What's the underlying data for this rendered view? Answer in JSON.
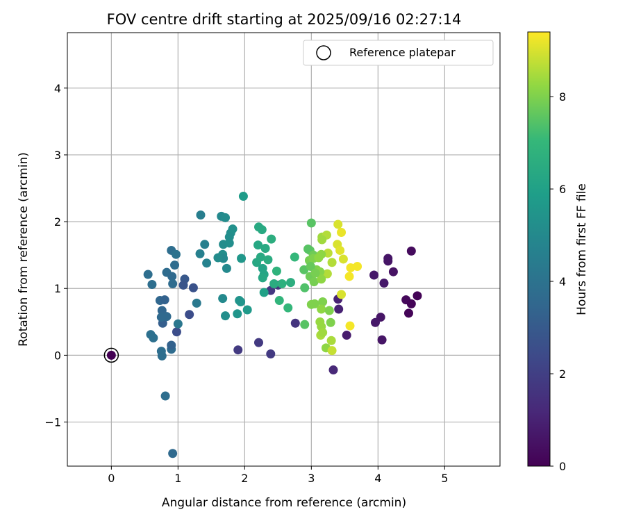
{
  "chart_data": {
    "type": "scatter",
    "title": "FOV centre drift starting at 2025/09/16 02:27:14",
    "xlabel": "Angular distance from reference (arcmin)",
    "ylabel": "Rotation from reference (arcmin)",
    "xlim": [
      -0.66,
      5.83
    ],
    "ylim": [
      -1.66,
      4.83
    ],
    "xticks": [
      0,
      1,
      2,
      3,
      4,
      5
    ],
    "xtick_labels": [
      "0",
      "1",
      "2",
      "3",
      "4",
      "5"
    ],
    "yticks": [
      -1,
      0,
      1,
      2,
      3,
      4
    ],
    "ytick_labels": [
      "−1",
      "0",
      "1",
      "2",
      "3",
      "4"
    ],
    "grid": true,
    "legend": {
      "placement": "top-right",
      "entries": [
        "Reference platepar"
      ]
    },
    "reference_point": [
      0,
      0
    ],
    "colorbar": {
      "label": "Hours from first FF file",
      "range": [
        0,
        9.4
      ],
      "ticks": [
        0,
        2,
        4,
        6,
        8
      ],
      "tick_labels": [
        "0",
        "2",
        "4",
        "6",
        "8"
      ],
      "colormap": "viridis"
    },
    "points_columns": [
      "x",
      "y",
      "hours"
    ],
    "points": [
      [
        0,
        0,
        0
      ],
      [
        4.5,
        1.56,
        0.3
      ],
      [
        4.15,
        1.45,
        0.6
      ],
      [
        4.15,
        1.41,
        0.6
      ],
      [
        4.23,
        1.25,
        0.5
      ],
      [
        3.94,
        1.2,
        0.7
      ],
      [
        4.09,
        1.08,
        0.7
      ],
      [
        4.59,
        0.89,
        0.1
      ],
      [
        4.42,
        0.83,
        0.2
      ],
      [
        4.5,
        0.77,
        0.1
      ],
      [
        4.46,
        0.63,
        0.1
      ],
      [
        4.04,
        0.57,
        0.6
      ],
      [
        3.96,
        0.49,
        0.7
      ],
      [
        4.06,
        0.23,
        0.6
      ],
      [
        3.53,
        0.3,
        0.8
      ],
      [
        3.4,
        0.84,
        1.0
      ],
      [
        3.41,
        0.69,
        1.0
      ],
      [
        3.33,
        -0.22,
        1.2
      ],
      [
        2.39,
        0.02,
        1.8
      ],
      [
        1.17,
        0.61,
        2.5
      ],
      [
        1.9,
        0.08,
        1.8
      ],
      [
        2.21,
        0.19,
        1.8
      ],
      [
        2.39,
        0.97,
        1.7
      ],
      [
        2.5,
        1.05,
        1.6
      ],
      [
        2.76,
        0.48,
        1.6
      ],
      [
        0.81,
        -0.61,
        3.8
      ],
      [
        0.92,
        -1.47,
        3.6
      ],
      [
        0.9,
        0.09,
        3.7
      ],
      [
        0.9,
        0.15,
        3.3
      ],
      [
        0.76,
        -0.01,
        3.8
      ],
      [
        0.75,
        0.06,
        3.8
      ],
      [
        0.59,
        0.31,
        3.9
      ],
      [
        0.63,
        0.26,
        3.9
      ],
      [
        0.77,
        0.48,
        3.2
      ],
      [
        0.98,
        0.35,
        2.5
      ],
      [
        1.0,
        0.47,
        4.2
      ],
      [
        0.76,
        0.67,
        3.5
      ],
      [
        0.83,
        0.58,
        3.6
      ],
      [
        0.75,
        0.57,
        3.6
      ],
      [
        0.73,
        0.82,
        3.5
      ],
      [
        0.8,
        0.83,
        3.3
      ],
      [
        0.55,
        1.21,
        3.8
      ],
      [
        0.61,
        1.06,
        3.8
      ],
      [
        0.83,
        1.24,
        3.7
      ],
      [
        0.91,
        1.18,
        3.6
      ],
      [
        0.92,
        1.07,
        3.7
      ],
      [
        0.9,
        1.57,
        3.8
      ],
      [
        0.97,
        1.51,
        4.0
      ],
      [
        0.95,
        1.35,
        3.7
      ],
      [
        1.1,
        1.14,
        2.9
      ],
      [
        1.08,
        1.05,
        2.8
      ],
      [
        1.23,
        1.01,
        2.7
      ],
      [
        1.28,
        0.78,
        4.3
      ],
      [
        1.34,
        2.1,
        4.5
      ],
      [
        1.33,
        1.52,
        4.6
      ],
      [
        1.4,
        1.66,
        4.6
      ],
      [
        1.43,
        1.38,
        4.7
      ],
      [
        1.65,
        2.08,
        5.0
      ],
      [
        1.71,
        2.06,
        5.1
      ],
      [
        1.79,
        1.83,
        5.2
      ],
      [
        1.82,
        1.89,
        5.3
      ],
      [
        1.77,
        1.77,
        5.2
      ],
      [
        1.67,
        1.51,
        5.2
      ],
      [
        1.68,
        1.45,
        5.0
      ],
      [
        1.6,
        1.46,
        5.1
      ],
      [
        1.68,
        1.66,
        5.1
      ],
      [
        1.77,
        1.68,
        5.2
      ],
      [
        1.73,
        1.3,
        5.0
      ],
      [
        1.67,
        0.85,
        5.0
      ],
      [
        1.71,
        0.59,
        5.2
      ],
      [
        1.95,
        1.45,
        5.6
      ],
      [
        1.98,
        2.38,
        5.8
      ],
      [
        1.92,
        0.82,
        5.4
      ],
      [
        1.94,
        0.8,
        5.5
      ],
      [
        2.04,
        0.68,
        5.7
      ],
      [
        1.89,
        0.62,
        5.5
      ],
      [
        2.21,
        1.92,
        6.4
      ],
      [
        2.26,
        1.88,
        6.4
      ],
      [
        2.2,
        1.65,
        6.3
      ],
      [
        2.31,
        1.6,
        6.4
      ],
      [
        2.18,
        1.39,
        6.3
      ],
      [
        2.24,
        1.47,
        6.4
      ],
      [
        2.27,
        1.3,
        6.1
      ],
      [
        2.29,
        1.21,
        6.2
      ],
      [
        2.27,
        1.16,
        6.3
      ],
      [
        2.35,
        1.43,
        6.5
      ],
      [
        2.4,
        1.74,
        6.6
      ],
      [
        2.48,
        1.26,
        6.8
      ],
      [
        2.52,
        0.82,
        6.9
      ],
      [
        2.29,
        0.94,
        6.0
      ],
      [
        2.44,
        1.07,
        6.5
      ],
      [
        2.56,
        1.07,
        6.7
      ],
      [
        2.69,
        1.09,
        6.6
      ],
      [
        2.65,
        0.71,
        7.0
      ],
      [
        2.75,
        1.47,
        7.0
      ],
      [
        2.9,
        0.46,
        7.5
      ],
      [
        2.89,
        1.28,
        7.5
      ],
      [
        2.9,
        1.01,
        7.4
      ],
      [
        3.0,
        1.98,
        7.5
      ],
      [
        2.98,
        1.57,
        7.6
      ],
      [
        2.95,
        1.59,
        7.5
      ],
      [
        3.4,
        1.96,
        9.0
      ],
      [
        3.45,
        1.84,
        9.2
      ],
      [
        3.16,
        1.77,
        8.4
      ],
      [
        3.23,
        1.8,
        8.6
      ],
      [
        3.16,
        1.73,
        8.4
      ],
      [
        3.39,
        1.66,
        9.0
      ],
      [
        3.43,
        1.57,
        9.1
      ],
      [
        3.25,
        1.53,
        8.7
      ],
      [
        3.48,
        1.44,
        9.0
      ],
      [
        3.31,
        1.39,
        8.6
      ],
      [
        3.59,
        1.31,
        9.3
      ],
      [
        3.69,
        1.33,
        9.3
      ],
      [
        3.57,
        1.18,
        9.3
      ],
      [
        3.24,
        1.22,
        8.6
      ],
      [
        3.45,
        0.91,
        9.0
      ],
      [
        3.58,
        0.44,
        9.3
      ],
      [
        3.0,
        0.76,
        8.0
      ],
      [
        3.05,
        0.77,
        8.0
      ],
      [
        3.17,
        0.8,
        8.0
      ],
      [
        3.15,
        0.69,
        8.2
      ],
      [
        3.27,
        0.67,
        8.0
      ],
      [
        3.13,
        0.5,
        8.3
      ],
      [
        3.15,
        0.43,
        8.3
      ],
      [
        3.14,
        0.3,
        8.5
      ],
      [
        3.17,
        0.34,
        8.4
      ],
      [
        3.3,
        0.22,
        8.5
      ],
      [
        3.22,
        0.11,
        8.2
      ],
      [
        3.31,
        0.07,
        8.8
      ],
      [
        3.29,
        0.49,
        8.0
      ],
      [
        3.03,
        1.5,
        7.8
      ],
      [
        2.97,
        1.42,
        7.9
      ],
      [
        3.03,
        1.45,
        8.0
      ],
      [
        3.11,
        1.46,
        8.2
      ],
      [
        3.15,
        1.51,
        8.2
      ],
      [
        3.08,
        1.28,
        8.0
      ],
      [
        2.98,
        1.18,
        7.8
      ],
      [
        2.99,
        1.33,
        7.7
      ],
      [
        3.13,
        1.25,
        8.1
      ],
      [
        3.04,
        1.1,
        7.9
      ],
      [
        3.15,
        1.14,
        8.2
      ],
      [
        3.06,
        1.23,
        7.9
      ]
    ]
  }
}
